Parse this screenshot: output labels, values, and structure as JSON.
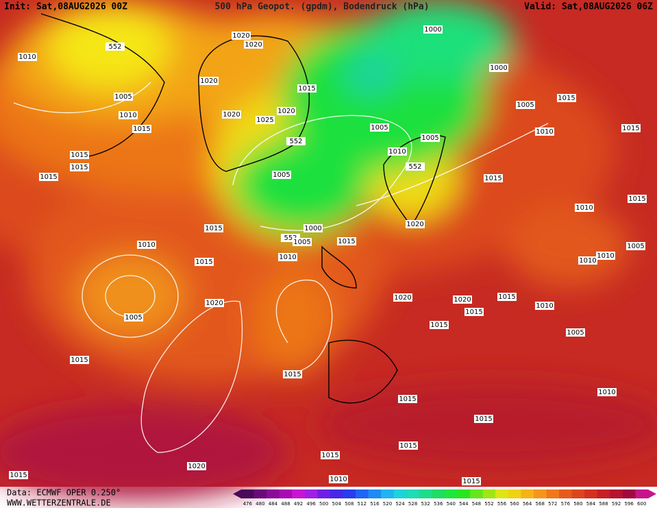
{
  "header": {
    "init": "Init: Sat,08AUG2026 00Z",
    "title": "500 hPa Geopot. (gpdm), Bodendruck (hPa)",
    "valid": "Valid: Sat,08AUG2026 06Z"
  },
  "footer": {
    "source": "Data: ECMWF OPER 0.250°",
    "site": "WWW.WETTERZENTRALE.DE"
  },
  "isobar_labels": [
    1010,
    552,
    1020,
    1020,
    1000,
    1000,
    1020,
    1015,
    1005,
    1010,
    1015,
    1020,
    1020,
    1025,
    552,
    1005,
    1005,
    1015,
    1010,
    1015,
    1005,
    1010,
    552,
    1015,
    1015,
    1015,
    1005,
    1015,
    1015,
    1010,
    1000,
    1015,
    1020,
    552,
    1005,
    1015,
    1005,
    1010,
    1010,
    1015,
    1010,
    1010,
    1020,
    1020,
    1015,
    1010,
    1015,
    1020,
    1005,
    1015,
    1005,
    1015,
    1015,
    1010,
    1015,
    1015,
    1015,
    1015,
    1020,
    1015,
    1010,
    1015
  ],
  "legend": {
    "labels": [
      476,
      480,
      484,
      488,
      492,
      496,
      500,
      504,
      508,
      512,
      516,
      520,
      524,
      528,
      532,
      536,
      540,
      544,
      548,
      552,
      556,
      560,
      564,
      568,
      572,
      576,
      580,
      584,
      588,
      592,
      596,
      600
    ],
    "colors": [
      "#4a0a5a",
      "#6a0a7a",
      "#8a0a9a",
      "#aa0ab4",
      "#c814d2",
      "#a01ee6",
      "#6e1ee6",
      "#4628e6",
      "#283cf0",
      "#1e64f5",
      "#1e8cf5",
      "#1eb4f0",
      "#1ed2dc",
      "#1edcb4",
      "#1edc8c",
      "#1edc64",
      "#1ee63c",
      "#28e61e",
      "#64e61e",
      "#a0e614",
      "#dce614",
      "#f0d214",
      "#f5b414",
      "#f5961a",
      "#f0781a",
      "#e65a1e",
      "#dc461e",
      "#d2321e",
      "#c81e28",
      "#b41432",
      "#a00a3c",
      "#c8148c"
    ]
  }
}
